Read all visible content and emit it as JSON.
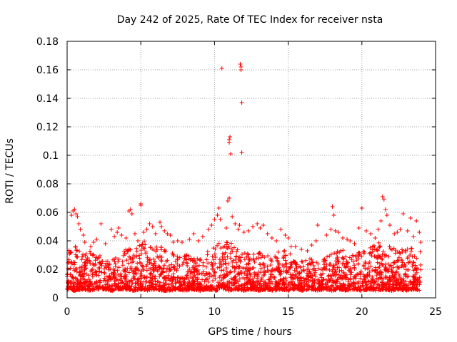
{
  "colors": {
    "series": "#ff0000",
    "grid": "#a0a0a0",
    "axis": "#000000",
    "background": "#ffffff"
  },
  "chart_data": {
    "type": "scatter",
    "title": "Day 242 of 2025, Rate Of TEC Index for receiver nsta",
    "xlabel": "GPS time / hours",
    "ylabel": "ROTI / TECUs",
    "xlim": [
      0,
      25
    ],
    "ylim": [
      0,
      0.18
    ],
    "xticks": [
      0,
      5,
      10,
      15,
      20,
      25
    ],
    "yticks": [
      0,
      0.02,
      0.04,
      0.06,
      0.08,
      0.1,
      0.12,
      0.14,
      0.16,
      0.18
    ],
    "x_tick_labels": [
      "0",
      "5",
      "10",
      "15",
      "20",
      "25"
    ],
    "y_tick_labels": [
      "0",
      "0.02",
      "0.04",
      "0.06",
      "0.08",
      "0.1",
      "0.12",
      "0.14",
      "0.16",
      "0.18"
    ],
    "grid": true,
    "marker": "+",
    "series": [
      {
        "name": "ROTI",
        "baseline_envelope": {
          "x": [
            0,
            0.5,
            1,
            1.5,
            2,
            2.5,
            3,
            3.5,
            4,
            4.5,
            5,
            5.5,
            6,
            6.5,
            7,
            7.5,
            8,
            8.5,
            9,
            9.5,
            10,
            10.5,
            11,
            11.5,
            12,
            12.5,
            13,
            13.5,
            14,
            14.5,
            15,
            15.5,
            16,
            16.5,
            17,
            17.5,
            18,
            18.5,
            19,
            19.5,
            20,
            20.5,
            21,
            21.5,
            22,
            22.5,
            23,
            23.5,
            24
          ],
          "y_low": [
            0.006,
            0.005,
            0.006,
            0.005,
            0.006,
            0.006,
            0.005,
            0.006,
            0.006,
            0.005,
            0.006,
            0.005,
            0.006,
            0.005,
            0.005,
            0.006,
            0.005,
            0.006,
            0.005,
            0.006,
            0.005,
            0.006,
            0.005,
            0.006,
            0.005,
            0.006,
            0.005,
            0.006,
            0.005,
            0.006,
            0.005,
            0.006,
            0.005,
            0.006,
            0.005,
            0.006,
            0.005,
            0.006,
            0.005,
            0.006,
            0.005,
            0.006,
            0.005,
            0.006,
            0.005,
            0.006,
            0.005,
            0.006,
            0.005
          ],
          "y_high": [
            0.034,
            0.038,
            0.03,
            0.033,
            0.031,
            0.028,
            0.027,
            0.029,
            0.036,
            0.032,
            0.042,
            0.039,
            0.037,
            0.036,
            0.032,
            0.03,
            0.031,
            0.028,
            0.03,
            0.032,
            0.038,
            0.041,
            0.04,
            0.034,
            0.034,
            0.03,
            0.032,
            0.03,
            0.029,
            0.034,
            0.033,
            0.027,
            0.026,
            0.028,
            0.026,
            0.029,
            0.033,
            0.035,
            0.032,
            0.031,
            0.033,
            0.035,
            0.038,
            0.04,
            0.036,
            0.035,
            0.034,
            0.036,
            0.033
          ]
        },
        "points": [
          [
            0.3,
            0.058
          ],
          [
            0.4,
            0.061
          ],
          [
            0.5,
            0.062
          ],
          [
            0.6,
            0.059
          ],
          [
            0.7,
            0.057
          ],
          [
            0.8,
            0.052
          ],
          [
            0.9,
            0.048
          ],
          [
            1.1,
            0.044
          ],
          [
            1.2,
            0.039
          ],
          [
            1.6,
            0.036
          ],
          [
            1.8,
            0.039
          ],
          [
            2.0,
            0.041
          ],
          [
            2.3,
            0.052
          ],
          [
            2.6,
            0.038
          ],
          [
            3.0,
            0.048
          ],
          [
            3.2,
            0.043
          ],
          [
            3.4,
            0.046
          ],
          [
            3.5,
            0.049
          ],
          [
            3.7,
            0.044
          ],
          [
            4.0,
            0.042
          ],
          [
            4.2,
            0.061
          ],
          [
            4.3,
            0.062
          ],
          [
            4.4,
            0.059
          ],
          [
            4.6,
            0.045
          ],
          [
            4.8,
            0.04
          ],
          [
            5.0,
            0.066
          ],
          [
            5.0,
            0.065
          ],
          [
            5.2,
            0.046
          ],
          [
            5.4,
            0.048
          ],
          [
            5.6,
            0.052
          ],
          [
            5.8,
            0.05
          ],
          [
            6.0,
            0.045
          ],
          [
            6.3,
            0.053
          ],
          [
            6.4,
            0.05
          ],
          [
            6.6,
            0.047
          ],
          [
            6.8,
            0.045
          ],
          [
            7.0,
            0.044
          ],
          [
            7.2,
            0.039
          ],
          [
            7.5,
            0.04
          ],
          [
            7.8,
            0.039
          ],
          [
            8.3,
            0.041
          ],
          [
            8.6,
            0.045
          ],
          [
            8.9,
            0.04
          ],
          [
            9.2,
            0.043
          ],
          [
            9.6,
            0.048
          ],
          [
            9.8,
            0.051
          ],
          [
            10.0,
            0.055
          ],
          [
            10.2,
            0.058
          ],
          [
            10.3,
            0.063
          ],
          [
            10.4,
            0.055
          ],
          [
            10.5,
            0.161
          ],
          [
            10.8,
            0.049
          ],
          [
            10.9,
            0.068
          ],
          [
            11.0,
            0.07
          ],
          [
            11.0,
            0.111
          ],
          [
            11.05,
            0.113
          ],
          [
            11.0,
            0.109
          ],
          [
            11.1,
            0.101
          ],
          [
            11.2,
            0.057
          ],
          [
            11.4,
            0.052
          ],
          [
            11.6,
            0.048
          ],
          [
            11.7,
            0.051
          ],
          [
            11.75,
            0.164
          ],
          [
            11.8,
            0.162
          ],
          [
            11.8,
            0.16
          ],
          [
            11.85,
            0.137
          ],
          [
            11.85,
            0.102
          ],
          [
            12.0,
            0.046
          ],
          [
            12.3,
            0.047
          ],
          [
            12.6,
            0.05
          ],
          [
            12.9,
            0.052
          ],
          [
            13.1,
            0.049
          ],
          [
            13.3,
            0.051
          ],
          [
            13.6,
            0.045
          ],
          [
            13.9,
            0.042
          ],
          [
            14.2,
            0.04
          ],
          [
            14.5,
            0.048
          ],
          [
            14.8,
            0.044
          ],
          [
            15.0,
            0.042
          ],
          [
            15.2,
            0.036
          ],
          [
            15.5,
            0.036
          ],
          [
            15.9,
            0.034
          ],
          [
            16.3,
            0.033
          ],
          [
            16.6,
            0.037
          ],
          [
            16.9,
            0.04
          ],
          [
            17.0,
            0.051
          ],
          [
            17.6,
            0.044
          ],
          [
            17.9,
            0.048
          ],
          [
            18.0,
            0.064
          ],
          [
            18.1,
            0.058
          ],
          [
            18.2,
            0.047
          ],
          [
            18.4,
            0.046
          ],
          [
            18.7,
            0.042
          ],
          [
            19.0,
            0.041
          ],
          [
            19.2,
            0.04
          ],
          [
            19.5,
            0.038
          ],
          [
            19.8,
            0.049
          ],
          [
            20.0,
            0.063
          ],
          [
            20.3,
            0.047
          ],
          [
            20.6,
            0.045
          ],
          [
            20.9,
            0.042
          ],
          [
            21.1,
            0.048
          ],
          [
            21.3,
            0.054
          ],
          [
            21.4,
            0.071
          ],
          [
            21.5,
            0.069
          ],
          [
            21.6,
            0.062
          ],
          [
            21.7,
            0.058
          ],
          [
            21.9,
            0.051
          ],
          [
            22.2,
            0.045
          ],
          [
            22.4,
            0.046
          ],
          [
            22.6,
            0.048
          ],
          [
            22.8,
            0.059
          ],
          [
            23.1,
            0.047
          ],
          [
            23.3,
            0.056
          ],
          [
            23.5,
            0.043
          ],
          [
            23.7,
            0.054
          ],
          [
            23.9,
            0.046
          ],
          [
            24.0,
            0.039
          ]
        ]
      }
    ]
  }
}
